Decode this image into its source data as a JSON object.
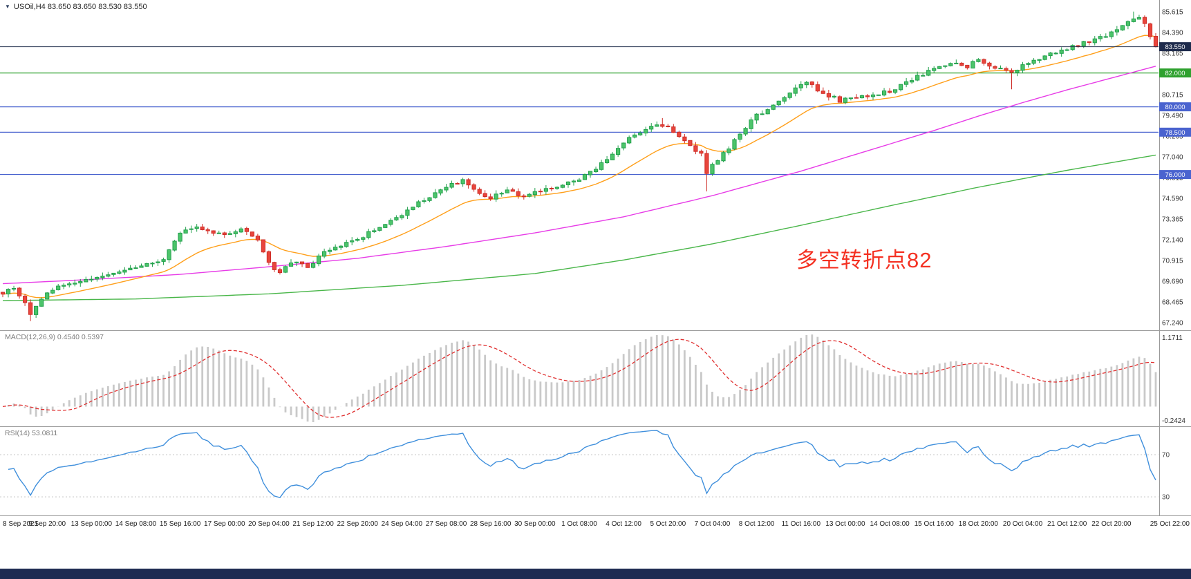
{
  "window": {
    "bottom_bar_color": "#1e2b52"
  },
  "header": {
    "dropdown_icon": "▼",
    "symbol_title": "USOil,H4 83.650 83.650 83.530 83.550"
  },
  "annotation": {
    "text": "多空转折点82",
    "color": "#f43122"
  },
  "panels": {
    "macd": {
      "header": "MACD(12,26,9) 0.4540 0.5397",
      "axis_top_label": "1.1711",
      "axis_bottom_label": "-0.2424"
    },
    "rsi": {
      "header": "RSI(14) 53.0811",
      "level_labels": [
        "70",
        "30"
      ]
    }
  },
  "time_axis": {
    "labels": [
      "8 Sep 2021",
      "9 Sep 20:00",
      "13 Sep 00:00",
      "14 Sep 08:00",
      "15 Sep 16:00",
      "17 Sep 00:00",
      "20 Sep 04:00",
      "21 Sep 12:00",
      "22 Sep 20:00",
      "24 Sep 04:00",
      "27 Sep 08:00",
      "28 Sep 16:00",
      "30 Sep 00:00",
      "1 Oct 08:00",
      "4 Oct 12:00",
      "5 Oct 20:00",
      "7 Oct 04:00",
      "8 Oct 12:00",
      "11 Oct 16:00",
      "13 Oct 00:00",
      "14 Oct 08:00",
      "15 Oct 16:00",
      "18 Oct 20:00",
      "20 Oct 04:00",
      "21 Oct 12:00",
      "22 Oct 20:00",
      "25 Oct 22:00"
    ]
  },
  "chart_data": {
    "type": "candlestick",
    "symbol": "USOil",
    "timeframe": "H4",
    "title": "USOil,H4",
    "current_ohlc": {
      "open": 83.65,
      "high": 83.65,
      "low": 83.53,
      "close": 83.55
    },
    "current_price": 83.55,
    "current_price_tag": {
      "label": "83.550",
      "color": "#1e2b4c"
    },
    "price_axis_labels": [
      "85.615",
      "84.390",
      "83.165",
      "81.940",
      "80.715",
      "79.490",
      "78.265",
      "77.040",
      "75.815",
      "74.590",
      "73.365",
      "72.140",
      "70.915",
      "69.690",
      "68.465",
      "67.240"
    ],
    "price_range": {
      "min": 66.84,
      "max": 86.31
    },
    "horizontal_levels": [
      {
        "label": "82.000",
        "price": 82.0,
        "color": "#2fa12f"
      },
      {
        "label": "80.000",
        "price": 80.0,
        "color": "#4a63cf"
      },
      {
        "label": "78.500",
        "price": 78.5,
        "color": "#4a63cf"
      },
      {
        "label": "76.000",
        "price": 76.0,
        "color": "#4a63cf"
      }
    ],
    "candle_count": 209,
    "seed": 9,
    "close_path_anchors": [
      [
        0,
        69.0
      ],
      [
        2,
        69.35
      ],
      [
        4,
        68.4
      ],
      [
        5,
        67.65
      ],
      [
        7,
        68.7
      ],
      [
        10,
        69.4
      ],
      [
        14,
        69.65
      ],
      [
        18,
        69.9
      ],
      [
        22,
        70.35
      ],
      [
        26,
        70.75
      ],
      [
        29,
        71.0
      ],
      [
        32,
        72.45
      ],
      [
        34,
        72.9
      ],
      [
        37,
        72.7
      ],
      [
        40,
        72.5
      ],
      [
        43,
        72.8
      ],
      [
        46,
        72.1
      ],
      [
        48,
        70.7
      ],
      [
        50,
        70.25
      ],
      [
        53,
        70.9
      ],
      [
        55,
        70.45
      ],
      [
        58,
        71.4
      ],
      [
        61,
        71.8
      ],
      [
        64,
        72.2
      ],
      [
        68,
        72.9
      ],
      [
        72,
        73.6
      ],
      [
        76,
        74.55
      ],
      [
        80,
        75.3
      ],
      [
        83,
        75.6
      ],
      [
        86,
        74.95
      ],
      [
        88,
        74.6
      ],
      [
        91,
        75.1
      ],
      [
        94,
        74.7
      ],
      [
        97,
        75.0
      ],
      [
        100,
        75.3
      ],
      [
        104,
        75.7
      ],
      [
        107,
        76.35
      ],
      [
        110,
        77.2
      ],
      [
        112,
        77.9
      ],
      [
        115,
        78.45
      ],
      [
        118,
        79.0
      ],
      [
        120,
        78.85
      ],
      [
        123,
        78.0
      ],
      [
        126,
        77.15
      ],
      [
        127,
        75.95
      ],
      [
        128,
        76.55
      ],
      [
        131,
        77.6
      ],
      [
        134,
        78.8
      ],
      [
        136,
        79.5
      ],
      [
        139,
        80.0
      ],
      [
        142,
        80.9
      ],
      [
        145,
        81.4
      ],
      [
        148,
        80.85
      ],
      [
        151,
        80.35
      ],
      [
        154,
        80.55
      ],
      [
        157,
        80.7
      ],
      [
        160,
        80.9
      ],
      [
        163,
        81.5
      ],
      [
        166,
        81.9
      ],
      [
        168,
        82.2
      ],
      [
        171,
        82.55
      ],
      [
        174,
        82.4
      ],
      [
        176,
        82.85
      ],
      [
        179,
        82.3
      ],
      [
        182,
        81.95
      ],
      [
        184,
        82.5
      ],
      [
        187,
        82.9
      ],
      [
        190,
        83.2
      ],
      [
        192,
        83.45
      ],
      [
        195,
        83.8
      ],
      [
        198,
        84.1
      ],
      [
        200,
        84.35
      ],
      [
        203,
        84.95
      ],
      [
        205,
        85.3
      ],
      [
        206,
        85.0
      ],
      [
        207,
        84.05
      ],
      [
        208,
        83.55
      ]
    ],
    "wick_events": [
      {
        "index": 5,
        "low_ext": 0.35
      },
      {
        "index": 119,
        "high_ext": 0.35
      },
      {
        "index": 127,
        "low_ext": 1.0
      },
      {
        "index": 182,
        "low_ext": 0.8
      },
      {
        "index": 204,
        "high_ext": 0.3
      }
    ],
    "moving_averages": {
      "fast": {
        "color": "#ff9f1a",
        "ema_period": 18
      },
      "mid": {
        "color": "#e73ce7",
        "anchors": [
          [
            0,
            69.55
          ],
          [
            16,
            69.8
          ],
          [
            32,
            70.1
          ],
          [
            48,
            70.55
          ],
          [
            64,
            71.05
          ],
          [
            80,
            71.75
          ],
          [
            96,
            72.55
          ],
          [
            112,
            73.5
          ],
          [
            128,
            74.75
          ],
          [
            144,
            76.2
          ],
          [
            152,
            77.0
          ],
          [
            160,
            77.8
          ],
          [
            168,
            78.6
          ],
          [
            176,
            79.45
          ],
          [
            184,
            80.25
          ],
          [
            192,
            81.0
          ],
          [
            200,
            81.7
          ],
          [
            208,
            82.4
          ]
        ]
      },
      "slow": {
        "color": "#49b649",
        "anchors": [
          [
            0,
            68.55
          ],
          [
            24,
            68.65
          ],
          [
            48,
            68.95
          ],
          [
            72,
            69.45
          ],
          [
            96,
            70.15
          ],
          [
            112,
            70.95
          ],
          [
            128,
            71.9
          ],
          [
            144,
            73.0
          ],
          [
            160,
            74.15
          ],
          [
            176,
            75.25
          ],
          [
            192,
            76.25
          ],
          [
            208,
            77.15
          ]
        ]
      }
    },
    "macd": {
      "fast": 12,
      "slow": 26,
      "signal": 9,
      "value": 0.454,
      "signal_value": 0.5397,
      "hist_color": "#c9c9c9",
      "signal_color": "#e03030",
      "axis_max": 1.1711,
      "axis_min": -0.2424
    },
    "rsi": {
      "period": 14,
      "value": 53.0811,
      "color": "#3f8fdc",
      "levels": [
        70,
        30
      ]
    },
    "up_color": "#4cc46a",
    "up_border": "#21a04b",
    "down_color": "#e8453c",
    "down_border": "#cf2d27"
  }
}
